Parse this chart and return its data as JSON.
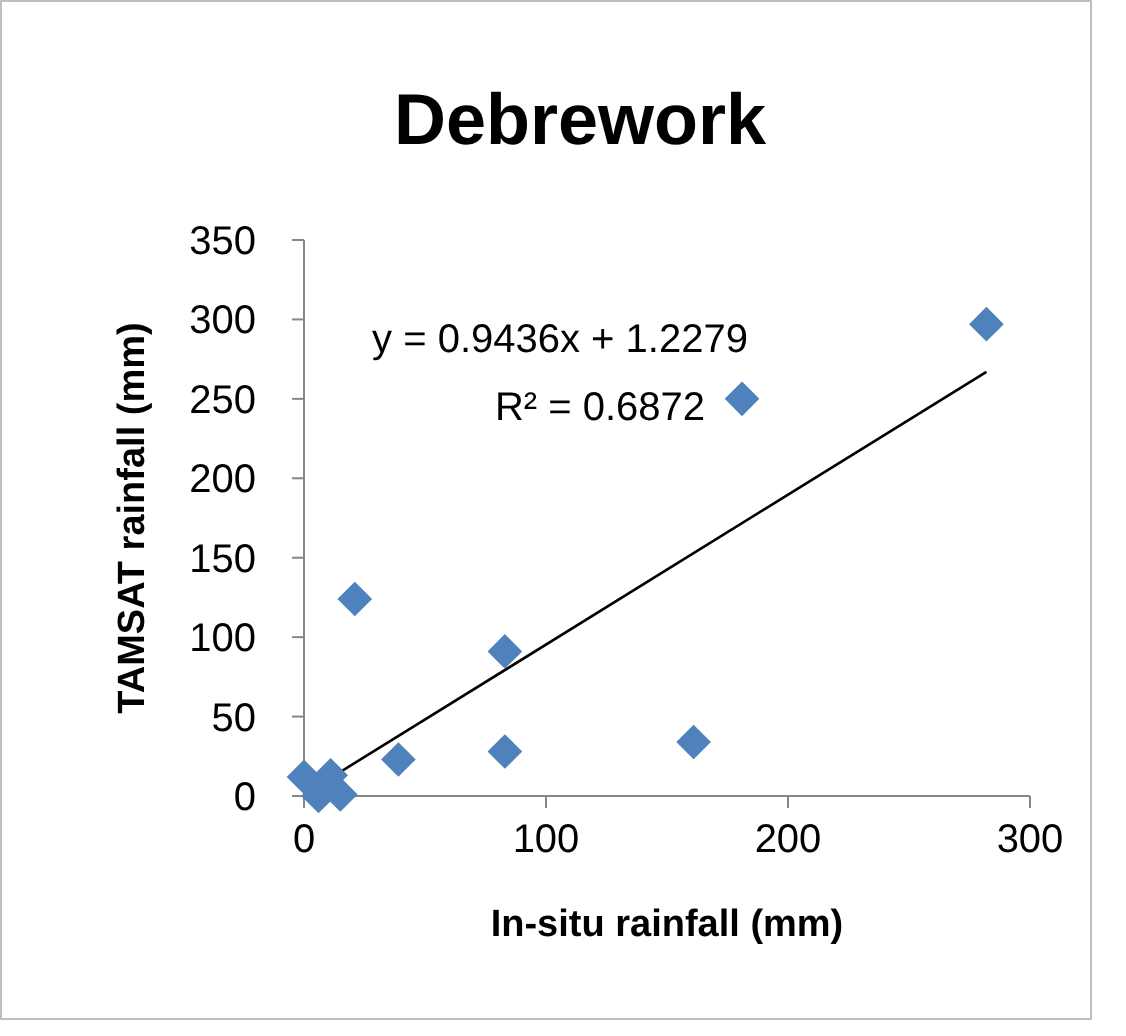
{
  "chart_data": {
    "type": "scatter",
    "title": "Debrework",
    "xlabel": "In-situ rainfall (mm)",
    "ylabel": "TAMSAT rainfall (mm)",
    "xlim": [
      0,
      300
    ],
    "xticks": [
      0,
      100,
      200,
      300
    ],
    "ylim": [
      0,
      350
    ],
    "yticks": [
      0,
      50,
      100,
      150,
      200,
      250,
      300,
      350
    ],
    "grid": false,
    "marker": "diamond",
    "series": [
      {
        "color": "#4f81bd",
        "x": [
          0,
          6,
          11,
          15,
          21,
          39,
          83,
          83,
          161,
          181,
          282
        ],
        "values": [
          12,
          0,
          13,
          1,
          124,
          23,
          91,
          28,
          34,
          250,
          297
        ]
      },
      {
        "type": "line",
        "color": "#000000",
        "marker": "none",
        "x": [
          0,
          282
        ],
        "values": [
          1,
          267
        ]
      }
    ],
    "annotations": [
      "y = 0.9436x + 1.2279",
      "R² = 0.6872"
    ]
  }
}
